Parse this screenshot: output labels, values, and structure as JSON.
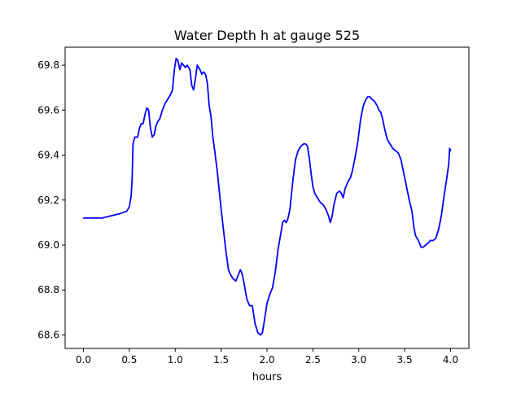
{
  "chart_data": {
    "type": "line",
    "title": "Water Depth h at gauge 525",
    "xlabel": "hours",
    "ylabel": "",
    "xlim": [
      -0.2,
      4.2
    ],
    "ylim": [
      68.54,
      69.88
    ],
    "xticks": [
      0.0,
      0.5,
      1.0,
      1.5,
      2.0,
      2.5,
      3.0,
      3.5,
      4.0
    ],
    "xtick_labels": [
      "0.0",
      "0.5",
      "1.0",
      "1.5",
      "2.0",
      "2.5",
      "3.0",
      "3.5",
      "4.0"
    ],
    "yticks": [
      68.6,
      68.8,
      69.0,
      69.2,
      69.4,
      69.6,
      69.8
    ],
    "ytick_labels": [
      "68.6",
      "68.8",
      "69.0",
      "69.2",
      "69.4",
      "69.6",
      "69.8"
    ],
    "grid": false,
    "legend": "none",
    "series": [
      {
        "color": "#0000ff",
        "x": [
          0.0,
          0.1,
          0.2,
          0.3,
          0.4,
          0.47,
          0.5,
          0.52,
          0.53,
          0.54,
          0.56,
          0.59,
          0.61,
          0.63,
          0.65,
          0.67,
          0.69,
          0.71,
          0.73,
          0.75,
          0.77,
          0.79,
          0.81,
          0.83,
          0.86,
          0.89,
          0.92,
          0.95,
          0.97,
          0.99,
          1.01,
          1.03,
          1.05,
          1.07,
          1.09,
          1.11,
          1.13,
          1.16,
          1.18,
          1.2,
          1.22,
          1.24,
          1.27,
          1.29,
          1.31,
          1.33,
          1.35,
          1.37,
          1.39,
          1.41,
          1.43,
          1.46,
          1.5,
          1.55,
          1.58,
          1.6,
          1.63,
          1.66,
          1.69,
          1.71,
          1.73,
          1.75,
          1.78,
          1.81,
          1.84,
          1.87,
          1.9,
          1.93,
          1.95,
          1.97,
          2.0,
          2.03,
          2.06,
          2.09,
          2.12,
          2.15,
          2.17,
          2.19,
          2.21,
          2.23,
          2.25,
          2.28,
          2.31,
          2.34,
          2.37,
          2.4,
          2.42,
          2.44,
          2.46,
          2.48,
          2.5,
          2.52,
          2.55,
          2.58,
          2.61,
          2.64,
          2.67,
          2.69,
          2.71,
          2.73,
          2.76,
          2.79,
          2.81,
          2.83,
          2.85,
          2.88,
          2.91,
          2.93,
          2.96,
          2.99,
          3.02,
          3.05,
          3.08,
          3.1,
          3.12,
          3.14,
          3.17,
          3.2,
          3.22,
          3.24,
          3.26,
          3.28,
          3.31,
          3.34,
          3.37,
          3.4,
          3.43,
          3.46,
          3.49,
          3.52,
          3.55,
          3.58,
          3.6,
          3.62,
          3.65,
          3.68,
          3.7,
          3.73,
          3.76,
          3.78,
          3.81,
          3.84,
          3.87,
          3.9,
          3.93,
          3.96,
          3.98,
          3.99,
          4.0
        ],
        "values": [
          69.12,
          69.12,
          69.12,
          69.13,
          69.14,
          69.15,
          69.17,
          69.22,
          69.29,
          69.45,
          69.48,
          69.48,
          69.52,
          69.54,
          69.54,
          69.58,
          69.61,
          69.6,
          69.52,
          69.48,
          69.49,
          69.53,
          69.55,
          69.56,
          69.6,
          69.63,
          69.65,
          69.67,
          69.69,
          69.78,
          69.83,
          69.82,
          69.78,
          69.81,
          69.8,
          69.79,
          69.8,
          69.78,
          69.71,
          69.69,
          69.74,
          69.8,
          69.78,
          69.76,
          69.77,
          69.76,
          69.72,
          69.62,
          69.57,
          69.48,
          69.42,
          69.32,
          69.16,
          68.98,
          68.89,
          68.87,
          68.85,
          68.84,
          68.87,
          68.89,
          68.87,
          68.83,
          68.76,
          68.73,
          68.73,
          68.65,
          68.61,
          68.6,
          68.61,
          68.66,
          68.74,
          68.78,
          68.81,
          68.88,
          68.98,
          69.05,
          69.1,
          69.11,
          69.1,
          69.12,
          69.16,
          69.28,
          69.38,
          69.42,
          69.44,
          69.45,
          69.45,
          69.44,
          69.39,
          69.32,
          69.26,
          69.23,
          69.21,
          69.19,
          69.18,
          69.16,
          69.13,
          69.1,
          69.13,
          69.18,
          69.23,
          69.24,
          69.23,
          69.21,
          69.25,
          69.28,
          69.3,
          69.33,
          69.39,
          69.46,
          69.56,
          69.62,
          69.65,
          69.66,
          69.66,
          69.65,
          69.64,
          69.62,
          69.6,
          69.59,
          69.56,
          69.52,
          69.47,
          69.45,
          69.43,
          69.42,
          69.41,
          69.38,
          69.32,
          69.26,
          69.2,
          69.15,
          69.08,
          69.04,
          69.02,
          68.99,
          68.99,
          69.0,
          69.01,
          69.02,
          69.02,
          69.03,
          69.07,
          69.13,
          69.22,
          69.3,
          69.36,
          69.43,
          69.42
        ]
      }
    ]
  }
}
